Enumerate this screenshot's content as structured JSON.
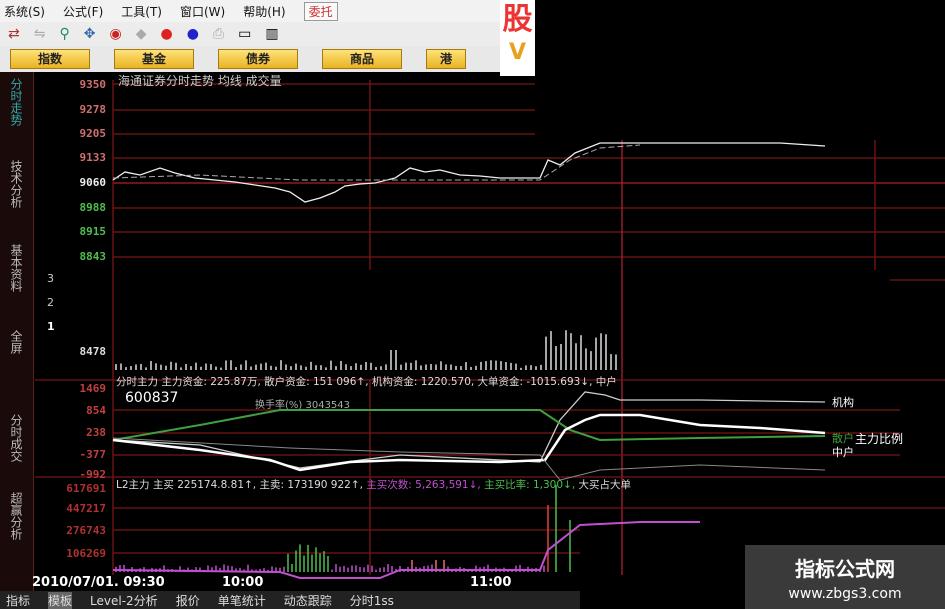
{
  "menu": {
    "items": [
      "系统(S)",
      "公式(F)",
      "工具(T)",
      "窗口(W)",
      "帮助(H)"
    ],
    "entrust": "委托"
  },
  "quick_buttons": [
    "指数",
    "基金",
    "债券",
    "商品",
    "港"
  ],
  "logo": {
    "char": "股",
    "sub": "V"
  },
  "sidebar": [
    "分时走势",
    "技术分析",
    "基本资料",
    "全屏",
    "分时成交",
    "超赢分析"
  ],
  "price_panel": {
    "title": "海通证券分时走势 均线 成交量",
    "y_labels": [
      "9350",
      "9278",
      "9205",
      "9133",
      "9060",
      "8988",
      "8915",
      "8843"
    ],
    "volume_labels": [
      "3",
      "2",
      "1"
    ],
    "volume_max": "8478"
  },
  "flow_panel": {
    "stats": "分时主力 主力资金: 225.87万, 散户资金: 151 096↑, 机构资金: 1220.570, 大单资金: -1015.693↓, 中户",
    "stock_code": "600837",
    "subtitle": "换手率(%)  3043543",
    "y_labels": [
      "1469",
      "854",
      "238",
      "-377",
      "-992"
    ],
    "legend": {
      "institution": "机构",
      "retail": "散户",
      "main_ratio": "主力比例",
      "middle": "中户"
    }
  },
  "l2_panel": {
    "stats_a": "L2主力 主买 225174.8.81↑, 主卖: 173190 922↑,",
    "stats_b": "主买次数: 5,263,591↓,",
    "stats_c": "主买比率: 1,300↓,",
    "stats_d": "大买占大单",
    "y_labels": [
      "617691",
      "447217",
      "276743",
      "106269"
    ]
  },
  "time_axis": {
    "date": "2010/07/01",
    "ticks": [
      "09:30",
      "10:00",
      "11:00"
    ]
  },
  "bottom_tabs": [
    "指标",
    "模板",
    "Level-2分析",
    "报价",
    "单笔统计",
    "动态跟踪",
    "分时1ss"
  ],
  "watermark": {
    "name": "指标公式网",
    "url": "www.zbgs3.com"
  },
  "colors": {
    "grid": "#8a1a1a",
    "price_up": "#e07070",
    "price_down": "#4fbf4f",
    "line": "#ffffff",
    "retail": "#3fa03f",
    "purple": "#c050d0"
  }
}
